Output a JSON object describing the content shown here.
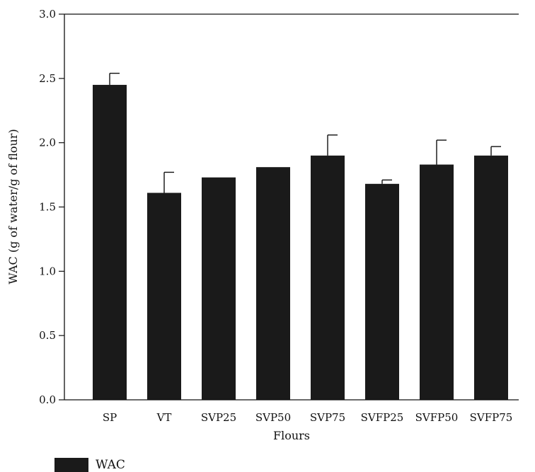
{
  "chart_data": {
    "type": "bar",
    "title": "",
    "xlabel": "Flours",
    "ylabel": "WAC (g of water/g of flour)",
    "categories": [
      "SP",
      "VT",
      "SVP25",
      "SVP50",
      "SVP75",
      "SVFP25",
      "SVFP50",
      "SVFP75"
    ],
    "series": [
      {
        "name": "WAC",
        "values": [
          2.45,
          1.61,
          1.73,
          1.81,
          1.9,
          1.68,
          1.83,
          1.9
        ],
        "error": [
          0.09,
          0.16,
          0.0,
          0.0,
          0.16,
          0.03,
          0.19,
          0.07
        ]
      }
    ],
    "ylim": [
      0,
      3.0
    ],
    "yticks": [
      "0.0",
      "0.5",
      "1.0",
      "1.5",
      "2.0",
      "2.5",
      "3.0"
    ],
    "grid": false,
    "legend_position": "bottom-left",
    "colors": {
      "bar": "#1a1a1a",
      "axis": "#111111"
    }
  }
}
